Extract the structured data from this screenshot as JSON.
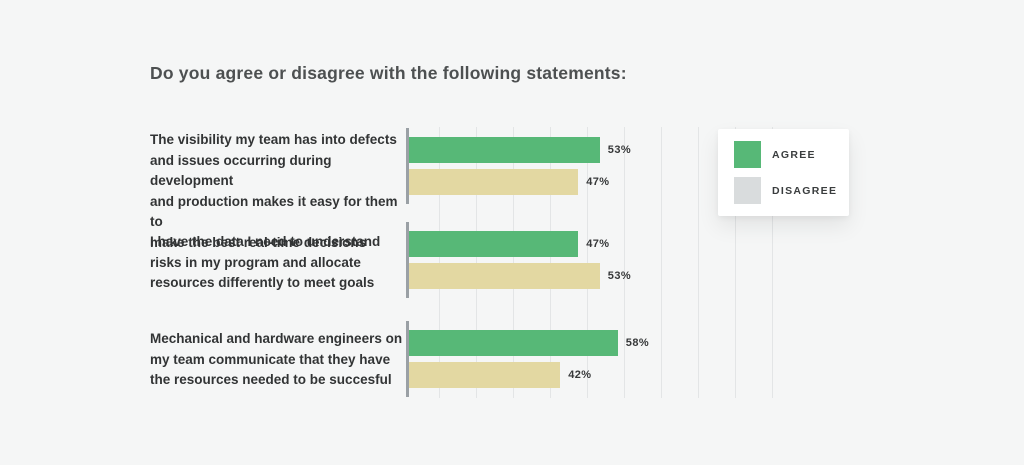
{
  "title": "Do you agree or disagree with the following statements:",
  "colors": {
    "background": "#f5f6f6",
    "agree": "#57b877",
    "disagree_bar": "#e3d8a2",
    "disagree_legend": "#d9dcdd",
    "axis": "#9aa0a5",
    "gridline": "#e3e5e6"
  },
  "legend": {
    "items": [
      {
        "label": "AGREE",
        "color": "#57b877"
      },
      {
        "label": "DISAGREE",
        "color": "#d9dcdd"
      }
    ]
  },
  "chart_data": {
    "type": "bar",
    "orientation": "horizontal",
    "title": "Do you agree or disagree with the following statements:",
    "categories": [
      "The visibility my team has into defects and issues occurring during development and production makes it easy for them to make the best real-time decisions",
      "I have the data I need to understand risks in my program and allocate resources differently to meet goals",
      "Mechanical and hardware engineers on my team communicate that they have the resources needed to be succesful"
    ],
    "category_lines": [
      [
        "The visibility my team has into defects",
        "and issues occurring during development",
        "and production makes it easy for them to",
        "make the best real-time decisions"
      ],
      [
        "I have the data I need to understand",
        "risks in my program and allocate",
        "resources differently to meet goals"
      ],
      [
        "Mechanical and hardware engineers on",
        "my team communicate that they have",
        "the resources needed to be succesful"
      ]
    ],
    "series": [
      {
        "name": "Agree",
        "color": "#57b877",
        "values": [
          53,
          47,
          58
        ],
        "labels": [
          "53%",
          "47%",
          "58%"
        ]
      },
      {
        "name": "Disagree",
        "color": "#e3d8a2",
        "values": [
          47,
          53,
          42
        ],
        "labels": [
          "47%",
          "53%",
          "42%"
        ]
      }
    ],
    "xlim": [
      0,
      102
    ],
    "grid": true,
    "gridline_step_percent": 10.3,
    "legend_position": "top-right",
    "value_label_format": "percent"
  }
}
